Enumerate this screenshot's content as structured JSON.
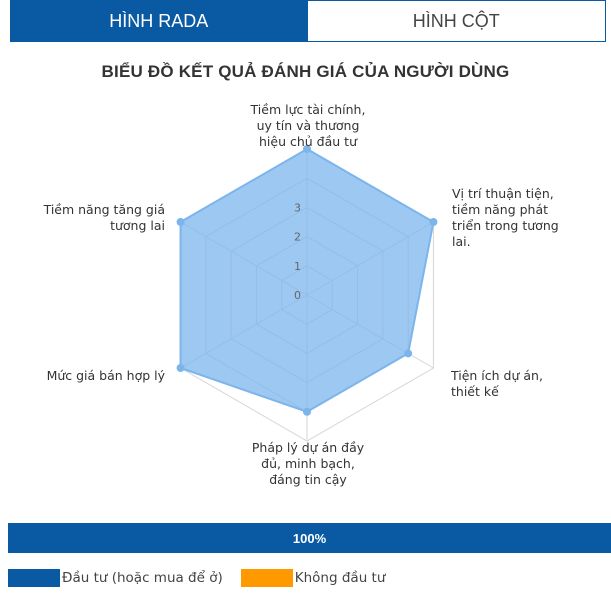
{
  "tabs": [
    {
      "label": "HÌNH RADA",
      "active": true
    },
    {
      "label": "HÌNH CỘT",
      "active": false
    }
  ],
  "chart_data": {
    "type": "radar",
    "title": "BIỂU ĐỒ KẾT QUẢ ĐÁNH GIÁ CỦA NGƯỜI DÙNG",
    "axes": [
      "Tiềm lực tài chính, uy tín và thương hiệu chủ đầu tư",
      "Vị trí thuận tiện, tiềm năng phát triển trong tương lai.",
      "Tiện ích dự án, thiết kế",
      "Pháp lý dự án đầy đủ, minh bạch, đáng tin cậy",
      "Mức giá bán hợp lý",
      "Tiềm năng tăng giá tương lai"
    ],
    "tick_labels": [
      "0",
      "1",
      "2",
      "3"
    ],
    "range": [
      0,
      5
    ],
    "grid": true,
    "series": [
      {
        "values": [
          5,
          5,
          4,
          4,
          5,
          5
        ],
        "color": "#7cb5ec"
      }
    ]
  },
  "progress": {
    "label": "100%",
    "color": "#0a5aa3"
  },
  "legend": [
    {
      "label": "Đầu tư (hoặc mua để ở)",
      "color": "#0a5aa3"
    },
    {
      "label": "Không đầu tư",
      "color": "#ff9900"
    }
  ]
}
